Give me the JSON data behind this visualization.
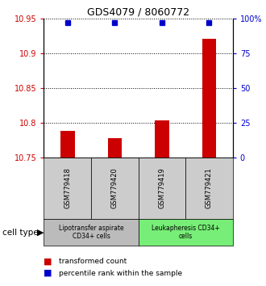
{
  "title": "GDS4079 / 8060772",
  "samples": [
    "GSM779418",
    "GSM779420",
    "GSM779419",
    "GSM779421"
  ],
  "bar_values": [
    10.788,
    10.778,
    10.803,
    10.921
  ],
  "percentile_values": [
    97,
    97,
    97,
    97
  ],
  "bar_color": "#cc0000",
  "dot_color": "#0000cc",
  "ylim_left": [
    10.75,
    10.95
  ],
  "ylim_right": [
    0,
    100
  ],
  "yticks_left": [
    10.75,
    10.8,
    10.85,
    10.9,
    10.95
  ],
  "yticks_right": [
    0,
    25,
    50,
    75,
    100
  ],
  "ytick_labels_left": [
    "10.75",
    "10.8",
    "10.85",
    "10.9",
    "10.95"
  ],
  "ytick_labels_right": [
    "0",
    "25",
    "50",
    "75",
    "100%"
  ],
  "cell_groups": [
    {
      "label": "Lipotransfer aspirate\nCD34+ cells",
      "samples": [
        0,
        1
      ],
      "color": "#bbbbbb"
    },
    {
      "label": "Leukapheresis CD34+\ncells",
      "samples": [
        2,
        3
      ],
      "color": "#77ee77"
    }
  ],
  "sample_box_color": "#cccccc",
  "cell_type_label": "cell type",
  "legend_red_label": "transformed count",
  "legend_blue_label": "percentile rank within the sample",
  "background_color": "#ffffff",
  "plot_bg_color": "#ffffff",
  "bar_width": 0.3
}
